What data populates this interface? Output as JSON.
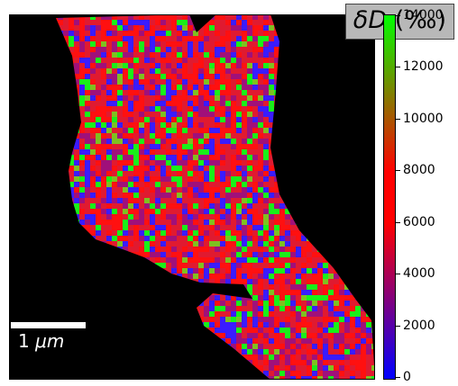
{
  "label": {
    "symbol": "δD",
    "unit": "(‰)"
  },
  "scale_bar": {
    "value": "1",
    "unit": "μm"
  },
  "colorbar": {
    "ticks": [
      "0",
      "2000",
      "4000",
      "6000",
      "8000",
      "10000",
      "12000",
      "14000"
    ],
    "colors": {
      "low": "#0000ff",
      "mid": "#ff0000",
      "high": "#00ff00"
    }
  },
  "background_color": "#000000"
}
